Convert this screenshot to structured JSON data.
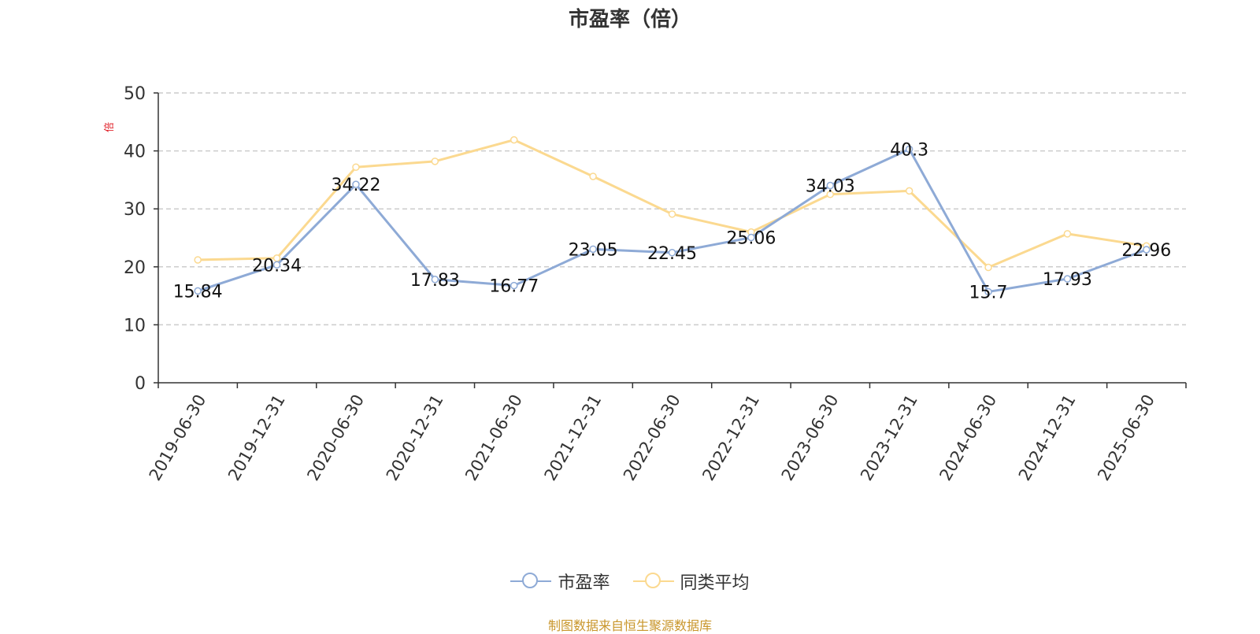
{
  "chart_data": {
    "type": "line",
    "title": "市盈率（倍）",
    "ylabel": "倍",
    "ylim": [
      0,
      50
    ],
    "yticks": [
      0,
      10,
      20,
      30,
      40,
      50
    ],
    "grid": true,
    "legend_position": "bottom",
    "categories": [
      "2019-06-30",
      "2019-12-31",
      "2020-06-30",
      "2020-12-31",
      "2021-06-30",
      "2021-12-31",
      "2022-06-30",
      "2022-12-31",
      "2023-06-30",
      "2023-12-31",
      "2024-06-30",
      "2024-12-31",
      "2025-06-30"
    ],
    "series": [
      {
        "name": "市盈率",
        "color": "#8eaad6",
        "values": [
          15.84,
          20.34,
          34.22,
          17.83,
          16.77,
          23.05,
          22.45,
          25.06,
          34.03,
          40.3,
          15.7,
          17.93,
          22.96
        ],
        "labels": [
          "15.84",
          "20.34",
          "34.22",
          "17.83",
          "16.77",
          "23.05",
          "22.45",
          "25.06",
          "34.03",
          "40.3",
          "15.7",
          "17.93",
          "22.96"
        ]
      },
      {
        "name": "同类平均",
        "color": "#fbd990",
        "values": [
          21.2,
          21.5,
          37.2,
          38.2,
          41.9,
          35.6,
          29.1,
          26.0,
          32.5,
          33.1,
          19.9,
          25.7,
          23.6
        ]
      }
    ]
  },
  "source": "制图数据来自恒生聚源数据库"
}
